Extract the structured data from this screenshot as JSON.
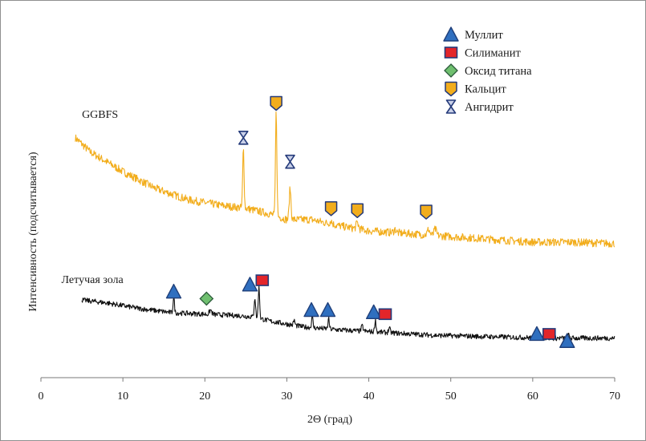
{
  "chart_data": {
    "type": "line",
    "xlabel": "2Θ (град)",
    "ylabel": "Интенсивность (подсчитывается)",
    "xlim": [
      0,
      70
    ],
    "x_ticks": [
      "0",
      "10",
      "20",
      "30",
      "40",
      "50",
      "60",
      "70"
    ],
    "x_tick_values": [
      0,
      10,
      20,
      30,
      40,
      50,
      60,
      70
    ],
    "ylim": [
      0,
      1
    ],
    "y_ticks_visible": false,
    "grid": false,
    "legend": {
      "placement": "top-right",
      "entries": [
        {
          "label": "Муллит",
          "marker": "triangle",
          "color": "#2f6fbf"
        },
        {
          "label": "Силиманит",
          "marker": "square",
          "color": "#e3252a"
        },
        {
          "label": "Оксид титана",
          "marker": "diamond",
          "color": "#6fbf6f"
        },
        {
          "label": "Кальцит",
          "marker": "pentagon",
          "color": "#f2ad1c"
        },
        {
          "label": "Ангидрит",
          "marker": "hourglass",
          "color": "#9aa7c9"
        }
      ]
    },
    "series": [
      {
        "name": "GGBFS",
        "color": "#f2ad1c",
        "baseline": [
          [
            4.2,
            0.85
          ],
          [
            6,
            0.8
          ],
          [
            10,
            0.73
          ],
          [
            14,
            0.67
          ],
          [
            18,
            0.63
          ],
          [
            22,
            0.61
          ],
          [
            25,
            0.6
          ],
          [
            28,
            0.58
          ],
          [
            30,
            0.56
          ],
          [
            33,
            0.56
          ],
          [
            36,
            0.54
          ],
          [
            40,
            0.52
          ],
          [
            45,
            0.51
          ],
          [
            50,
            0.5
          ],
          [
            55,
            0.49
          ],
          [
            60,
            0.48
          ],
          [
            65,
            0.48
          ],
          [
            70,
            0.475
          ]
        ],
        "peaks": [
          [
            24.7,
            0.21,
            0.12
          ],
          [
            28.7,
            0.37,
            0.12
          ],
          [
            30.4,
            0.11,
            0.15
          ],
          [
            35.4,
            0.012,
            0.2
          ],
          [
            38.6,
            0.022,
            0.2
          ],
          [
            43.2,
            0.012,
            0.2
          ],
          [
            47.3,
            0.02,
            0.2
          ],
          [
            48.1,
            0.022,
            0.2
          ]
        ]
      },
      {
        "name": "Летучая зола",
        "color": "#111111",
        "baseline": [
          [
            5,
            0.275
          ],
          [
            8,
            0.265
          ],
          [
            12,
            0.245
          ],
          [
            16,
            0.23
          ],
          [
            20,
            0.225
          ],
          [
            24,
            0.22
          ],
          [
            26,
            0.215
          ],
          [
            28,
            0.2
          ],
          [
            32,
            0.18
          ],
          [
            36,
            0.17
          ],
          [
            42,
            0.16
          ],
          [
            48,
            0.15
          ],
          [
            55,
            0.145
          ],
          [
            62,
            0.14
          ],
          [
            70,
            0.14
          ]
        ],
        "peaks": [
          [
            16.2,
            0.055,
            0.12
          ],
          [
            20.7,
            0.015,
            0.2
          ],
          [
            26.1,
            0.07,
            0.12
          ],
          [
            26.6,
            0.11,
            0.12
          ],
          [
            30.9,
            0.018,
            0.12
          ],
          [
            33.1,
            0.04,
            0.12
          ],
          [
            35.1,
            0.035,
            0.12
          ],
          [
            39.2,
            0.018,
            0.15
          ],
          [
            40.8,
            0.042,
            0.12
          ],
          [
            42.5,
            0.015,
            0.15
          ],
          [
            60.6,
            0.03,
            0.15
          ],
          [
            64.3,
            0.012,
            0.2
          ]
        ]
      }
    ],
    "series_labels": [
      {
        "text": "GGBFS",
        "x": 5,
        "y": 0.92
      },
      {
        "text": "Летучая зола",
        "x": 2.5,
        "y": 0.335
      }
    ],
    "phase_markers": [
      {
        "phase": "Ангидрит",
        "x": 24.7,
        "y": 0.85
      },
      {
        "phase": "Кальцит",
        "x": 28.7,
        "y": 0.973
      },
      {
        "phase": "Ангидрит",
        "x": 30.4,
        "y": 0.765
      },
      {
        "phase": "Кальцит",
        "x": 35.4,
        "y": 0.6
      },
      {
        "phase": "Кальцит",
        "x": 38.6,
        "y": 0.593
      },
      {
        "phase": "Кальцит",
        "x": 47.0,
        "y": 0.588
      },
      {
        "phase": "Муллит",
        "x": 16.2,
        "y": 0.305
      },
      {
        "phase": "Оксид титана",
        "x": 20.2,
        "y": 0.28
      },
      {
        "phase": "Муллит",
        "x": 25.5,
        "y": 0.33
      },
      {
        "phase": "Силиманит",
        "x": 27.0,
        "y": 0.345
      },
      {
        "phase": "Муллит",
        "x": 33.0,
        "y": 0.24
      },
      {
        "phase": "Муллит",
        "x": 35.0,
        "y": 0.24
      },
      {
        "phase": "Муллит",
        "x": 40.6,
        "y": 0.232
      },
      {
        "phase": "Силиманит",
        "x": 42.0,
        "y": 0.225
      },
      {
        "phase": "Муллит",
        "x": 60.5,
        "y": 0.155
      },
      {
        "phase": "Силиманит",
        "x": 62.0,
        "y": 0.155
      },
      {
        "phase": "Муллит",
        "x": 64.2,
        "y": 0.13
      }
    ]
  }
}
